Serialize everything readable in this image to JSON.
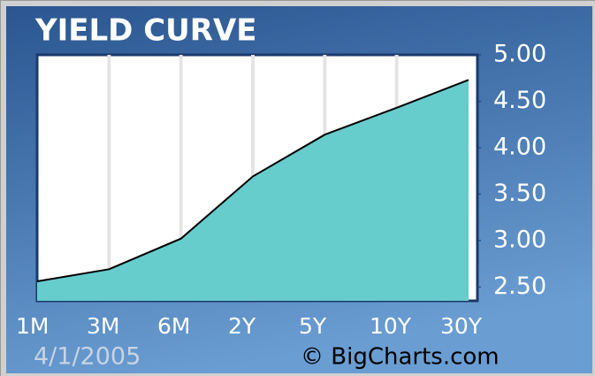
{
  "chart_data": {
    "type": "area",
    "title": "YIELD CURVE",
    "date": "4/1/2005",
    "credit": "© BigCharts.com",
    "categories": [
      "1M",
      "3M",
      "6M",
      "2Y",
      "5Y",
      "10Y",
      "30Y"
    ],
    "values": [
      2.56,
      2.69,
      3.02,
      3.69,
      4.14,
      4.43,
      4.73
    ],
    "color": "#66cccc",
    "line_color": "#000000",
    "ylim": [
      2.35,
      5.0
    ],
    "yticks": [
      {
        "value": 2.5,
        "label": "2.50"
      },
      {
        "value": 3,
        "label": "3.00"
      },
      {
        "value": 3.5,
        "label": "3.50"
      },
      {
        "value": 4,
        "label": "4.00"
      },
      {
        "value": 4.5,
        "label": "4.50"
      },
      {
        "value": 5,
        "label": "5.00"
      }
    ],
    "grid": true
  }
}
